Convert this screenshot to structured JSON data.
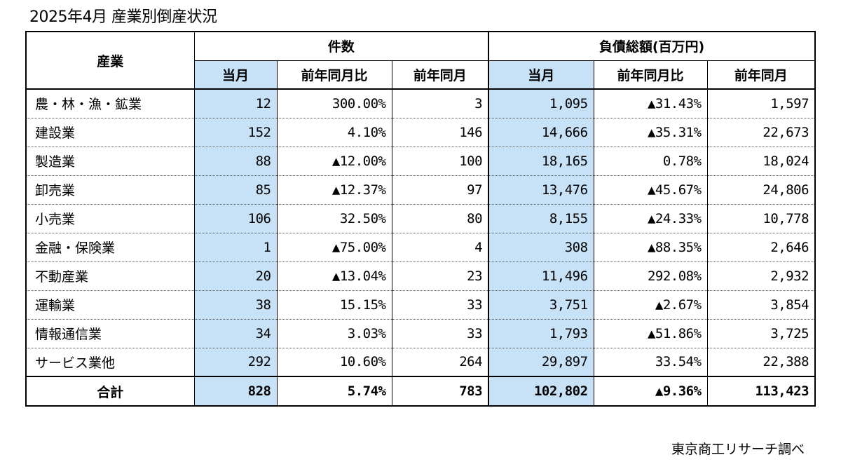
{
  "title": "2025年4月 産業別倒産状況",
  "source": "東京商工リサーチ調べ",
  "table": {
    "industry_header": "産業",
    "group_headers": [
      "件数",
      "負債総額(百万円)"
    ],
    "sub_headers": [
      "当月",
      "前年同月比",
      "前年同月",
      "当月",
      "前年同月比",
      "前年同月"
    ],
    "rows": [
      {
        "industry": "農・林・漁・鉱業",
        "cells": [
          "12",
          "300.00%",
          "3",
          "1,095",
          "▲31.43%",
          "1,597"
        ]
      },
      {
        "industry": "建設業",
        "cells": [
          "152",
          "4.10%",
          "146",
          "14,666",
          "▲35.31%",
          "22,673"
        ]
      },
      {
        "industry": "製造業",
        "cells": [
          "88",
          "▲12.00%",
          "100",
          "18,165",
          "0.78%",
          "18,024"
        ]
      },
      {
        "industry": "卸売業",
        "cells": [
          "85",
          "▲12.37%",
          "97",
          "13,476",
          "▲45.67%",
          "24,806"
        ]
      },
      {
        "industry": "小売業",
        "cells": [
          "106",
          "32.50%",
          "80",
          "8,155",
          "▲24.33%",
          "10,778"
        ]
      },
      {
        "industry": "金融・保険業",
        "cells": [
          "1",
          "▲75.00%",
          "4",
          "308",
          "▲88.35%",
          "2,646"
        ]
      },
      {
        "industry": "不動産業",
        "cells": [
          "20",
          "▲13.04%",
          "23",
          "11,496",
          "292.08%",
          "2,932"
        ]
      },
      {
        "industry": "運輸業",
        "cells": [
          "38",
          "15.15%",
          "33",
          "3,751",
          "▲2.67%",
          "3,854"
        ]
      },
      {
        "industry": "情報通信業",
        "cells": [
          "34",
          "3.03%",
          "33",
          "1,793",
          "▲51.86%",
          "3,725"
        ]
      },
      {
        "industry": "サービス業他",
        "cells": [
          "292",
          "10.60%",
          "264",
          "29,897",
          "33.54%",
          "22,388"
        ]
      }
    ],
    "total": {
      "label": "合計",
      "cells": [
        "828",
        "5.74%",
        "783",
        "102,802",
        "▲9.36%",
        "113,423"
      ]
    }
  },
  "colors": {
    "highlight": "#c7e2f7",
    "border": "#000000"
  }
}
